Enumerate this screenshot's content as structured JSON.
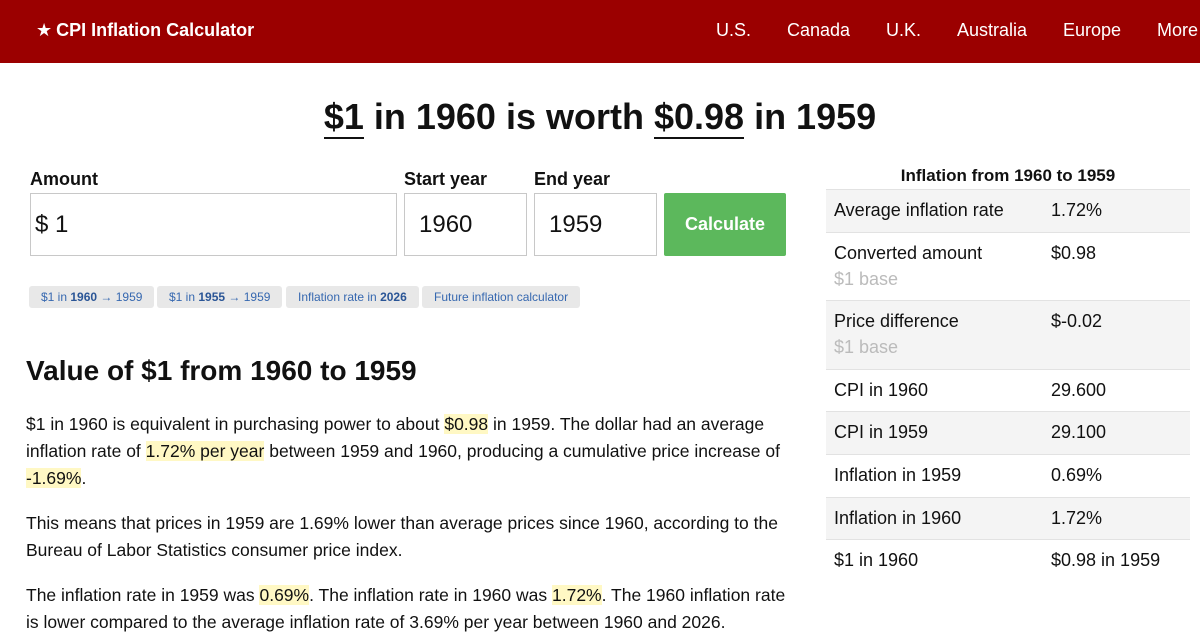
{
  "header": {
    "star": "★",
    "brand": "CPI Inflation Calculator",
    "nav": [
      "U.S.",
      "Canada",
      "U.K.",
      "Australia",
      "Europe",
      "More"
    ]
  },
  "headline": {
    "amount": "$1",
    "mid1": " in 1960 is worth ",
    "converted": "$0.98",
    "mid2": " in 1959"
  },
  "form": {
    "amount_label": "Amount",
    "currency": "$",
    "amount_value": "1",
    "start_label": "Start year",
    "start_value": "1960",
    "end_label": "End year",
    "end_value": "1959",
    "calculate_label": "Calculate"
  },
  "chips": [
    {
      "pre": "$1 in ",
      "bold": "1960",
      "post": " → 1959"
    },
    {
      "pre": "$1 in ",
      "bold": "1955",
      "post": " → 1959"
    },
    {
      "pre": "Inflation rate in ",
      "bold": "2026",
      "post": ""
    },
    {
      "pre": "Future inflation calculator",
      "bold": "",
      "post": ""
    }
  ],
  "article": {
    "heading": "Value of $1 from 1960 to 1959",
    "p1": {
      "a": "$1 in 1960 is equivalent in purchasing power to about ",
      "h1": "$0.98",
      "b": " in 1959. The dollar had an average inflation rate of ",
      "h2": "1.72% per year",
      "c": " between 1959 and 1960, producing a cumulative price increase of ",
      "h3": "-1.69%",
      "d": "."
    },
    "p2": "This means that prices in 1959 are 1.69% lower than average prices since 1960, according to the Bureau of Labor Statistics consumer price index.",
    "p3": {
      "a": "The inflation rate in 1959 was ",
      "h1": "0.69%",
      "b": ". The inflation rate in 1960 was ",
      "h2": "1.72%",
      "c": ". The 1960 inflation rate is lower compared to the average inflation rate of 3.69% per year between 1960 and 2026."
    }
  },
  "sidebar": {
    "title": "Inflation from 1960 to 1959",
    "rows": [
      {
        "label": "Average inflation rate",
        "value": "1.72%",
        "sub": ""
      },
      {
        "label": "Converted amount",
        "value": "$0.98",
        "sub": "$1 base"
      },
      {
        "label": "Price difference",
        "value": "$-0.02",
        "sub": "$1 base"
      },
      {
        "label": "CPI in 1960",
        "value": "29.600",
        "sub": ""
      },
      {
        "label": "CPI in 1959",
        "value": "29.100",
        "sub": ""
      },
      {
        "label": "Inflation in 1959",
        "value": "0.69%",
        "sub": ""
      },
      {
        "label": "Inflation in 1960",
        "value": "1.72%",
        "sub": ""
      },
      {
        "label": "$1 in 1960",
        "value": "$0.98 in 1959",
        "sub": ""
      }
    ]
  },
  "colors": {
    "header_bg": "#9b0000",
    "button_bg": "#5cb85c",
    "highlight": "#fff8c4",
    "link": "#3668b0"
  }
}
